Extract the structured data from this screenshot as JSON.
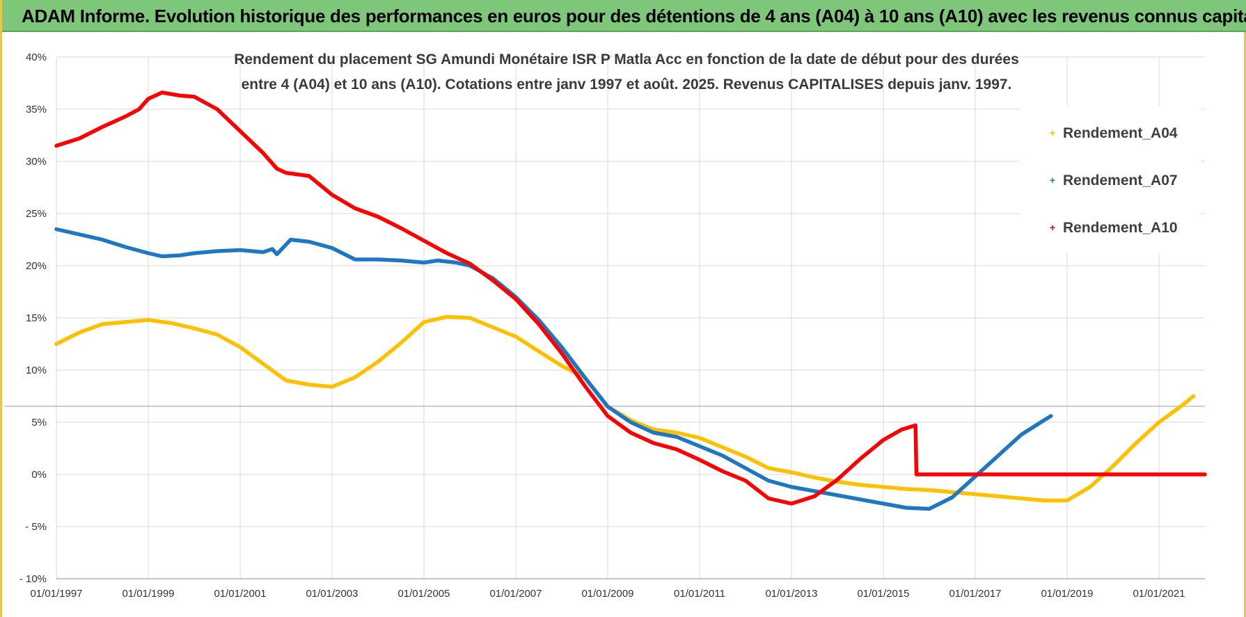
{
  "header": {
    "banner": "ADAM Informe. Evolution historique des performances en euros pour des détentions de 4 ans (A04) à 10 ans (A10) avec les revenus connus capitalisés"
  },
  "chart_data": {
    "type": "line",
    "title_lines": [
      "Rendement du placement SG Amundi Monétaire ISR P Matla Acc en fonction de la date de début pour des durées",
      "entre 4 (A04) et 10 ans (A10).  Cotations entre janv 1997 et août. 2025. Revenus CAPITALISES depuis janv. 1997."
    ],
    "xlabel": "",
    "ylabel": "",
    "x_ticks": [
      "01/01/1997",
      "01/01/1999",
      "01/01/2001",
      "01/01/2003",
      "01/01/2005",
      "01/01/2007",
      "01/01/2009",
      "01/01/2011",
      "01/01/2013",
      "01/01/2015",
      "01/01/2017",
      "01/01/2019",
      "01/01/2021"
    ],
    "y_ticks": [
      "40%",
      "35%",
      "30%",
      "25%",
      "20%",
      "15%",
      "10%",
      "5%",
      "0%",
      "- 5%",
      "- 10%"
    ],
    "ylim": [
      -10,
      40
    ],
    "xlim": [
      1997.0,
      2022.0
    ],
    "grid": true,
    "legend_position": "top-right",
    "series": [
      {
        "name": "Rendement_A04",
        "color": "#ffc000",
        "points": [
          [
            1997.0,
            12.5
          ],
          [
            1997.5,
            13.6
          ],
          [
            1998.0,
            14.4
          ],
          [
            1998.5,
            14.6
          ],
          [
            1999.0,
            14.8
          ],
          [
            1999.5,
            14.5
          ],
          [
            2000.0,
            14.0
          ],
          [
            2000.5,
            13.4
          ],
          [
            2001.0,
            12.2
          ],
          [
            2001.5,
            10.6
          ],
          [
            2002.0,
            9.0
          ],
          [
            2002.5,
            8.6
          ],
          [
            2003.0,
            8.4
          ],
          [
            2003.5,
            9.3
          ],
          [
            2004.0,
            10.8
          ],
          [
            2004.5,
            12.6
          ],
          [
            2005.0,
            14.6
          ],
          [
            2005.5,
            15.1
          ],
          [
            2006.0,
            15.0
          ],
          [
            2006.5,
            14.1
          ],
          [
            2007.0,
            13.2
          ],
          [
            2007.5,
            11.8
          ],
          [
            2008.0,
            10.4
          ],
          [
            2008.5,
            9.3
          ],
          [
            2009.0,
            6.5
          ],
          [
            2009.5,
            5.2
          ],
          [
            2010.0,
            4.3
          ],
          [
            2010.5,
            4.0
          ],
          [
            2011.0,
            3.5
          ],
          [
            2011.5,
            2.6
          ],
          [
            2012.0,
            1.7
          ],
          [
            2012.5,
            0.6
          ],
          [
            2013.0,
            0.2
          ],
          [
            2013.5,
            -0.3
          ],
          [
            2014.0,
            -0.7
          ],
          [
            2014.5,
            -1.0
          ],
          [
            2015.0,
            -1.2
          ],
          [
            2015.5,
            -1.4
          ],
          [
            2016.0,
            -1.5
          ],
          [
            2016.5,
            -1.7
          ],
          [
            2017.0,
            -1.9
          ],
          [
            2017.5,
            -2.1
          ],
          [
            2018.0,
            -2.3
          ],
          [
            2018.5,
            -2.5
          ],
          [
            2019.0,
            -2.5
          ],
          [
            2019.5,
            -1.2
          ],
          [
            2020.0,
            0.8
          ],
          [
            2020.5,
            3.0
          ],
          [
            2021.0,
            5.0
          ],
          [
            2021.5,
            6.6
          ],
          [
            2021.75,
            7.5
          ]
        ]
      },
      {
        "name": "Rendement_A07",
        "color": "#1f77c4",
        "points": [
          [
            1997.0,
            23.5
          ],
          [
            1997.5,
            23.0
          ],
          [
            1998.0,
            22.5
          ],
          [
            1998.5,
            21.8
          ],
          [
            1999.0,
            21.2
          ],
          [
            1999.3,
            20.9
          ],
          [
            1999.7,
            21.0
          ],
          [
            2000.0,
            21.2
          ],
          [
            2000.5,
            21.4
          ],
          [
            2001.0,
            21.5
          ],
          [
            2001.5,
            21.3
          ],
          [
            2001.7,
            21.6
          ],
          [
            2001.8,
            21.1
          ],
          [
            2002.1,
            22.5
          ],
          [
            2002.5,
            22.3
          ],
          [
            2003.0,
            21.7
          ],
          [
            2003.5,
            20.6
          ],
          [
            2004.0,
            20.6
          ],
          [
            2004.5,
            20.5
          ],
          [
            2005.0,
            20.3
          ],
          [
            2005.3,
            20.5
          ],
          [
            2005.7,
            20.3
          ],
          [
            2006.0,
            20.0
          ],
          [
            2006.5,
            18.8
          ],
          [
            2007.0,
            17.0
          ],
          [
            2007.5,
            14.8
          ],
          [
            2008.0,
            12.2
          ],
          [
            2008.5,
            9.3
          ],
          [
            2009.0,
            6.5
          ],
          [
            2009.5,
            5.0
          ],
          [
            2010.0,
            4.0
          ],
          [
            2010.5,
            3.6
          ],
          [
            2011.0,
            2.7
          ],
          [
            2011.5,
            1.8
          ],
          [
            2012.0,
            0.6
          ],
          [
            2012.5,
            -0.6
          ],
          [
            2013.0,
            -1.2
          ],
          [
            2013.5,
            -1.6
          ],
          [
            2014.0,
            -2.0
          ],
          [
            2014.5,
            -2.4
          ],
          [
            2015.0,
            -2.8
          ],
          [
            2015.5,
            -3.2
          ],
          [
            2016.0,
            -3.3
          ],
          [
            2016.5,
            -2.2
          ],
          [
            2017.0,
            -0.2
          ],
          [
            2017.5,
            1.8
          ],
          [
            2018.0,
            3.8
          ],
          [
            2018.5,
            5.2
          ],
          [
            2018.65,
            5.6
          ]
        ]
      },
      {
        "name": "Rendement_A10",
        "color": "#ff0000",
        "points": [
          [
            1997.0,
            31.5
          ],
          [
            1997.5,
            32.2
          ],
          [
            1998.0,
            33.3
          ],
          [
            1998.5,
            34.3
          ],
          [
            1998.8,
            35.0
          ],
          [
            1999.0,
            36.0
          ],
          [
            1999.3,
            36.6
          ],
          [
            1999.7,
            36.3
          ],
          [
            2000.0,
            36.2
          ],
          [
            2000.5,
            35.0
          ],
          [
            2001.0,
            32.9
          ],
          [
            2001.5,
            30.8
          ],
          [
            2001.8,
            29.3
          ],
          [
            2002.0,
            28.9
          ],
          [
            2002.5,
            28.6
          ],
          [
            2003.0,
            26.8
          ],
          [
            2003.5,
            25.5
          ],
          [
            2004.0,
            24.7
          ],
          [
            2004.5,
            23.6
          ],
          [
            2005.0,
            22.4
          ],
          [
            2005.5,
            21.2
          ],
          [
            2006.0,
            20.2
          ],
          [
            2006.5,
            18.6
          ],
          [
            2007.0,
            16.8
          ],
          [
            2007.5,
            14.4
          ],
          [
            2008.0,
            11.6
          ],
          [
            2008.5,
            8.5
          ],
          [
            2009.0,
            5.6
          ],
          [
            2009.5,
            4.0
          ],
          [
            2010.0,
            3.0
          ],
          [
            2010.5,
            2.4
          ],
          [
            2011.0,
            1.4
          ],
          [
            2011.5,
            0.3
          ],
          [
            2012.0,
            -0.6
          ],
          [
            2012.5,
            -2.3
          ],
          [
            2013.0,
            -2.8
          ],
          [
            2013.5,
            -2.1
          ],
          [
            2014.0,
            -0.5
          ],
          [
            2014.5,
            1.5
          ],
          [
            2015.0,
            3.3
          ],
          [
            2015.4,
            4.3
          ],
          [
            2015.7,
            4.7
          ],
          [
            2015.72,
            0.0
          ],
          [
            2022.0,
            0.0
          ]
        ]
      }
    ]
  }
}
